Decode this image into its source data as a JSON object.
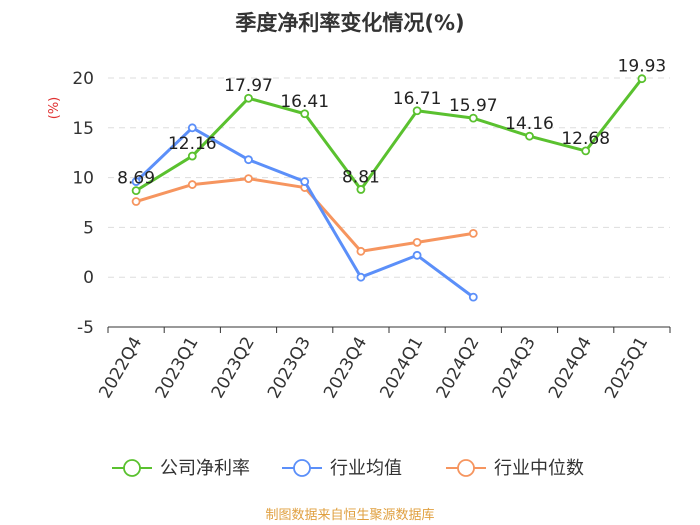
{
  "chart_data": {
    "type": "line",
    "title": "季度净利率变化情况(%)",
    "ylabel": "(%)",
    "ylim": [
      -5,
      20
    ],
    "yticks": [
      -5,
      0,
      5,
      10,
      15,
      20
    ],
    "categories": [
      "2022Q4",
      "2023Q1",
      "2023Q2",
      "2023Q3",
      "2023Q4",
      "2024Q1",
      "2024Q2",
      "2024Q3",
      "2024Q4",
      "2025Q1"
    ],
    "series": [
      {
        "name": "公司净利率",
        "color": "#5ac12f",
        "values": [
          8.69,
          12.16,
          17.97,
          16.41,
          8.81,
          16.71,
          15.97,
          14.16,
          12.68,
          19.93
        ],
        "labels": [
          "8.69",
          "12.16",
          "17.97",
          "16.41",
          "8.81",
          "16.71",
          "15.97",
          "14.16",
          "12.68",
          "19.93"
        ]
      },
      {
        "name": "行业均值",
        "color": "#5b8ff9",
        "values": [
          9.6,
          15.0,
          11.8,
          9.6,
          0.0,
          2.2,
          -2.0,
          null,
          null,
          null
        ]
      },
      {
        "name": "行业中位数",
        "color": "#f6955f",
        "values": [
          7.6,
          9.3,
          9.9,
          9.0,
          2.6,
          3.5,
          4.4,
          null,
          null,
          null
        ]
      }
    ],
    "grid": true,
    "legend_position": "bottom"
  },
  "colors": {
    "unit_label": "#e03030",
    "source": "#e0a040",
    "axis": "#333333",
    "grid": "#dddddd"
  },
  "source_text": "制图数据来自恒生聚源数据库"
}
